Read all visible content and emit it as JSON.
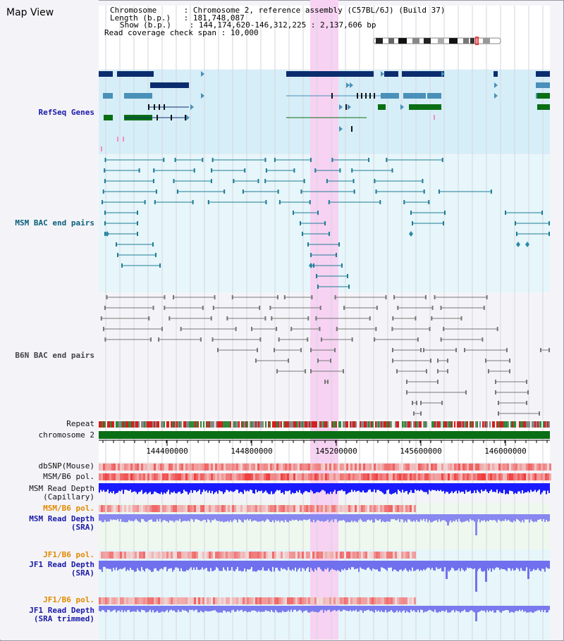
{
  "header": {
    "title": "Map View",
    "chromosome_label": "Chromosome",
    "chromosome_value": "Chromosome 2, reference assembly (C57BL/6J) (Build 37)",
    "length_label": "Length (b.p.)",
    "length_value": "181,748,087",
    "show_label": "Show (b.p.)",
    "show_value": "144,174,620-146,312,225 : 2,137,606 bp",
    "coverage_label": "Read coverage check span",
    "coverage_value": "10,000"
  },
  "tracks": {
    "refseq": "RefSeq Genes",
    "msm_bac": "MSM BAC end pairs",
    "b6n_bac": "B6N BAC end pairs",
    "repeat": "Repeat",
    "chromosome": "chromosome 2",
    "dbsnp": "dbSNP(Mouse)",
    "msm_b6_pol_1": "MSM/B6 pol.",
    "msm_depth_cap_1": "MSM Read Depth",
    "msm_depth_cap_2": "(Capillary)",
    "msm_b6_pol_2": "MSM/B6 pol.",
    "msm_depth_sra_1": "MSM Read Depth",
    "msm_depth_sra_2": "(SRA)",
    "jf1_b6_pol_1": "JF1/B6 pol.",
    "jf1_depth_sra_1": "JF1 Read Depth",
    "jf1_depth_sra_2": "(SRA)",
    "jf1_b6_pol_2": "JF1/B6 pol.",
    "jf1_depth_trim_1": "JF1 Read Depth",
    "jf1_depth_trim_2": "(SRA trimmed)"
  },
  "axis": {
    "ticks": [
      "144400000",
      "144800000",
      "145200000",
      "145600000",
      "146000000"
    ]
  },
  "colors": {
    "highlight": "#f7d2f2",
    "refseq_bg": "#d6eef8",
    "msm_bg": "#e6f6fa",
    "b6n_bg": "#f4f4f8",
    "gene_dark": "#0b2d6e",
    "gene_mid": "#4a90b8",
    "gene_green": "#0a6e14",
    "chromosome_green": "#0a6e14"
  }
}
